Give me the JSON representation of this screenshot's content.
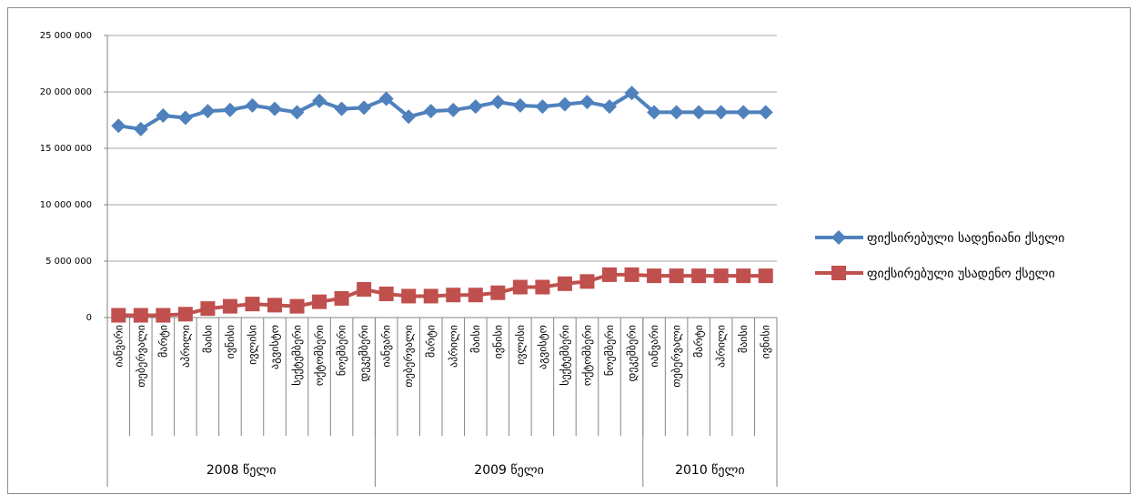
{
  "chart_data": {
    "type": "line",
    "title": "",
    "xlabel": "",
    "ylabel": "",
    "ylim": [
      0,
      25000000
    ],
    "y_ticks": [
      "25 000 000",
      "20 000 000",
      "15 000 000",
      "10 000 000",
      "5 000 000",
      "0"
    ],
    "y_tick_values": [
      25000000,
      20000000,
      15000000,
      10000000,
      5000000,
      0
    ],
    "grid": true,
    "legend_position": "right",
    "categories": [
      "იანვარი",
      "თებერვალი",
      "მარტი",
      "აპრილი",
      "მაისი",
      "ივნისი",
      "ივლისი",
      "აგვისტო",
      "სექტემბერი",
      "ოქტომბერი",
      "ნოემბერი",
      "დეკემბერი",
      "იანვარი",
      "თებერვალი",
      "მარტი",
      "აპრილი",
      "მაისი",
      "ივნისი",
      "ივლისი",
      "აგვისტო",
      "სექტემბერი",
      "ოქტომბერი",
      "ნოემბერი",
      "დეკემბერი",
      "იანვარი",
      "თებერვალი",
      "მარტი",
      "აპრილი",
      "მაისი",
      "ივნისი"
    ],
    "groups": [
      {
        "label": "2008 წელი",
        "count": 12
      },
      {
        "label": "2009 წელი",
        "count": 12
      },
      {
        "label": "2010 წელი",
        "count": 6
      }
    ],
    "series": [
      {
        "name": "ფიქსირებული სადენიანი ქსელი",
        "color": "#4f81bd",
        "marker": "diamond",
        "values": [
          17000000,
          16700000,
          17900000,
          17700000,
          18300000,
          18400000,
          18800000,
          18500000,
          18200000,
          19200000,
          18500000,
          18600000,
          19400000,
          17800000,
          18300000,
          18400000,
          18700000,
          19100000,
          18800000,
          18700000,
          18900000,
          19100000,
          18700000,
          19900000,
          18200000,
          18200000,
          18200000,
          18200000,
          18200000,
          18200000
        ]
      },
      {
        "name": "ფიქსირებული უსადენო ქსელი",
        "color": "#c0504d",
        "marker": "square",
        "values": [
          200000,
          200000,
          200000,
          300000,
          800000,
          1000000,
          1200000,
          1100000,
          1000000,
          1400000,
          1700000,
          2500000,
          2100000,
          1900000,
          1900000,
          2000000,
          2000000,
          2200000,
          2700000,
          2700000,
          3000000,
          3200000,
          3800000,
          3800000,
          3700000,
          3700000,
          3700000,
          3700000,
          3700000,
          3700000
        ]
      }
    ]
  }
}
